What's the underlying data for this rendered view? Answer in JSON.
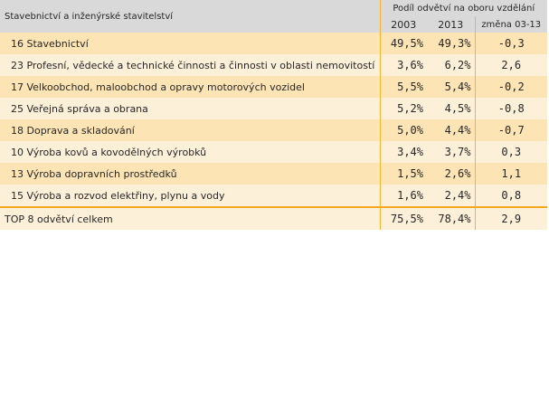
{
  "table": {
    "title": "Stavebnictví a inženýrské stavitelství",
    "group_header": "Podíl odvětví na oboru vzdělání",
    "columns": [
      "2003",
      "2013",
      "změna 03-13"
    ],
    "rows": [
      {
        "label": "16 Stavebnictví",
        "v2003": "49,5%",
        "v2013": "49,3%",
        "change": "-0,3"
      },
      {
        "label": "23 Profesní, vědecké a technické činnosti a činnosti v oblasti nemovitostí",
        "v2003": "3,6%",
        "v2013": "6,2%",
        "change": "2,6"
      },
      {
        "label": "17 Velkoobchod, maloobchod a opravy motorových vozidel",
        "v2003": "5,5%",
        "v2013": "5,4%",
        "change": "-0,2"
      },
      {
        "label": "25 Veřejná správa a obrana",
        "v2003": "5,2%",
        "v2013": "4,5%",
        "change": "-0,8"
      },
      {
        "label": "18 Doprava a skladování",
        "v2003": "5,0%",
        "v2013": "4,4%",
        "change": "-0,7"
      },
      {
        "label": "10 Výroba kovů a kovodělných výrobků",
        "v2003": "3,4%",
        "v2013": "3,7%",
        "change": "0,3"
      },
      {
        "label": "13 Výroba dopravních prostředků",
        "v2003": "1,5%",
        "v2013": "2,6%",
        "change": "1,1"
      },
      {
        "label": "15 Výroba a rozvod elektřiny, plynu a vody",
        "v2003": "1,6%",
        "v2013": "2,4%",
        "change": "0,8"
      }
    ],
    "total": {
      "label": "TOP 8 odvětví celkem",
      "v2003": "75,5%",
      "v2013": "78,4%",
      "change": "2,9"
    },
    "colors": {
      "header": "#d9d9d9",
      "row_dark": "#fde4b5",
      "row_light": "#fdf0d9",
      "accent": "#f5a623"
    }
  }
}
